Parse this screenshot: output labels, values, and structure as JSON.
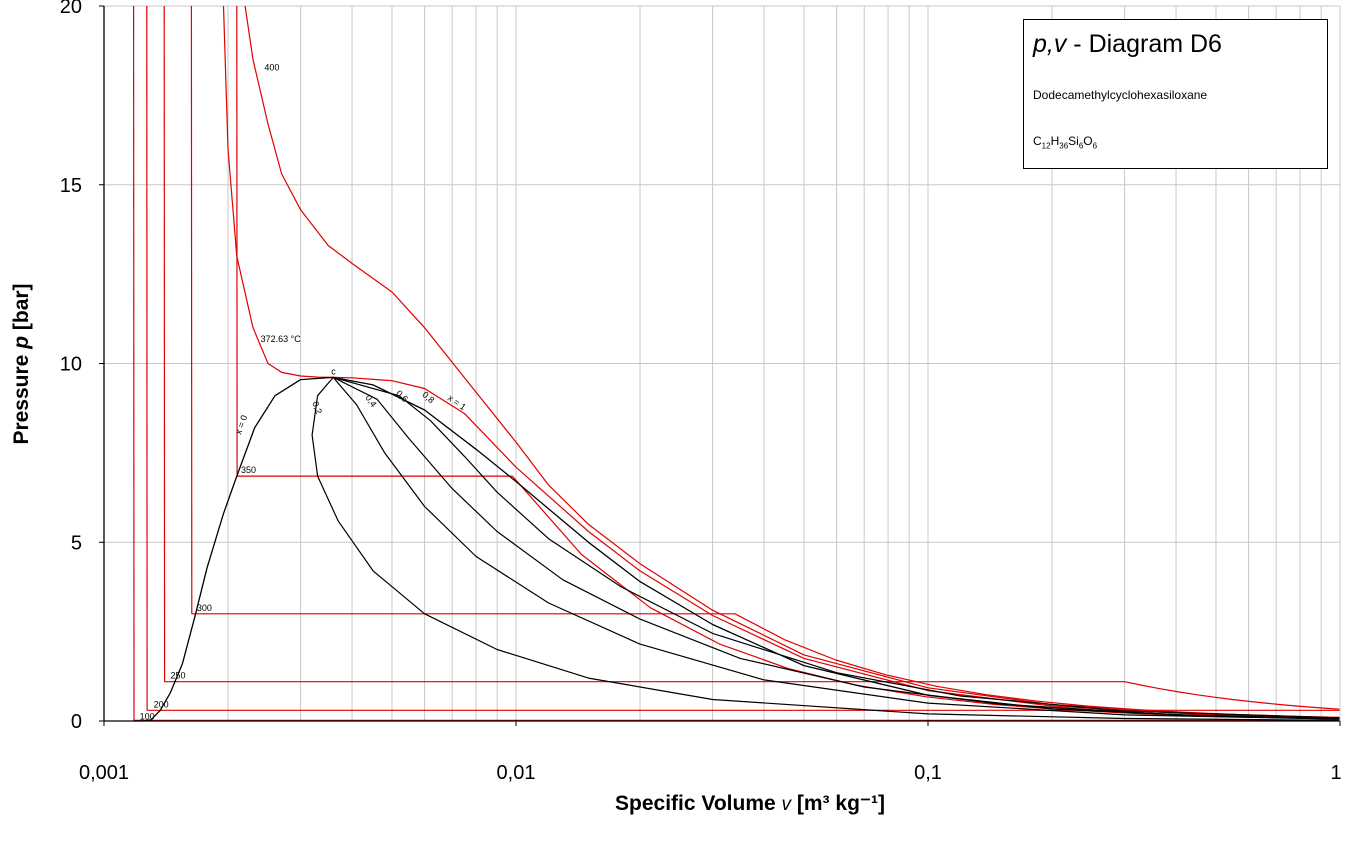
{
  "chart_data": {
    "type": "line",
    "title": "",
    "xlabel": {
      "text": "Specific Volume",
      "symbol": "v",
      "unit": "[m³ kg⁻¹]"
    },
    "ylabel": {
      "text": "Pressure",
      "symbol": "p",
      "unit": "[bar]"
    },
    "x_scale": "log",
    "xlim": [
      0.001,
      1
    ],
    "ylim": [
      0,
      20
    ],
    "x_ticks": [
      "0,001",
      "0,01",
      "0,1",
      "1"
    ],
    "y_ticks": [
      "0",
      "5",
      "10",
      "15",
      "20"
    ],
    "grid": true,
    "legend": {
      "title_prefix": "p,v",
      "title_rest": " - Diagram D6",
      "substance": "Dodecamethylcyclohexasiloxane",
      "formula_parts": [
        {
          "t": "C",
          "sub": false
        },
        {
          "t": "12",
          "sub": true
        },
        {
          "t": "H",
          "sub": false
        },
        {
          "t": "36",
          "sub": true
        },
        {
          "t": "Si",
          "sub": false
        },
        {
          "t": "6",
          "sub": true
        },
        {
          "t": "O",
          "sub": false
        },
        {
          "t": "6",
          "sub": true
        }
      ],
      "placement": "top-right"
    },
    "critical_point": {
      "label": "c",
      "v": 0.0036,
      "p": 9.61
    },
    "saturated_liquid": {
      "label": "x = 0",
      "v": [
        0.00118,
        0.00125,
        0.0013,
        0.00137,
        0.00145,
        0.00155,
        0.00166,
        0.00178,
        0.00195,
        0.0021,
        0.00232,
        0.0026,
        0.003,
        0.0036
      ],
      "p": [
        0.0,
        0.005,
        0.03,
        0.3,
        0.8,
        1.6,
        2.9,
        4.3,
        5.8,
        6.85,
        8.2,
        9.1,
        9.55,
        9.61
      ]
    },
    "saturated_vapor": {
      "label": "x = 1",
      "v": [
        0.0036,
        0.0045,
        0.006,
        0.008,
        0.01,
        0.015,
        0.02,
        0.03,
        0.05,
        0.1,
        0.2,
        0.5,
        1.0
      ],
      "p": [
        9.61,
        9.4,
        8.7,
        7.6,
        6.7,
        5.0,
        3.9,
        2.7,
        1.55,
        0.72,
        0.34,
        0.13,
        0.06
      ]
    },
    "quality_lines": [
      {
        "label": "0,2",
        "v": [
          0.0036,
          0.0033,
          0.0032,
          0.0033,
          0.0037,
          0.0045,
          0.006,
          0.009,
          0.015,
          0.03,
          0.1,
          0.3,
          1.0
        ],
        "p": [
          9.61,
          9.1,
          8.0,
          6.85,
          5.6,
          4.2,
          3.0,
          2.0,
          1.2,
          0.6,
          0.2,
          0.07,
          0.02
        ]
      },
      {
        "label": "0,4",
        "v": [
          0.0036,
          0.0041,
          0.0048,
          0.006,
          0.008,
          0.012,
          0.02,
          0.04,
          0.1,
          0.3,
          1.0
        ],
        "p": [
          9.61,
          8.85,
          7.5,
          6.0,
          4.6,
          3.3,
          2.15,
          1.15,
          0.5,
          0.17,
          0.05
        ]
      },
      {
        "label": "0,6",
        "v": [
          0.0036,
          0.0046,
          0.0055,
          0.007,
          0.009,
          0.013,
          0.02,
          0.035,
          0.07,
          0.15,
          0.4,
          1.0
        ],
        "p": [
          9.61,
          9.0,
          7.9,
          6.5,
          5.3,
          3.95,
          2.85,
          1.75,
          0.95,
          0.47,
          0.17,
          0.07
        ]
      },
      {
        "label": "0,8",
        "v": [
          0.0036,
          0.0052,
          0.0062,
          0.0075,
          0.009,
          0.012,
          0.018,
          0.03,
          0.06,
          0.12,
          0.3,
          1.0
        ],
        "p": [
          9.61,
          9.1,
          8.4,
          7.4,
          6.4,
          5.1,
          3.75,
          2.45,
          1.35,
          0.7,
          0.28,
          0.09
        ]
      }
    ],
    "isotherms": [
      {
        "label": "100",
        "T": 100,
        "p_sat": 0.02,
        "liquid_v": 0.00118,
        "vapor_v": 1.0
      },
      {
        "label": "200",
        "T": 200,
        "p_sat": 0.3,
        "liquid_v": 0.00127,
        "vapor_v": 1.0
      },
      {
        "label": "250",
        "T": 250,
        "p_sat": 1.1,
        "liquid_v": 0.0014,
        "vapor_v": 0.3
      },
      {
        "label": "300",
        "T": 300,
        "p_sat": 3.0,
        "liquid_v": 0.00163,
        "vapor_v": 0.034
      },
      {
        "label": "350",
        "T": 350,
        "p_sat": 6.85,
        "liquid_v": 0.0021,
        "vapor_v": 0.0098
      },
      {
        "label": "372.63 °C",
        "T": 372.63,
        "critical": true,
        "v": [
          0.00195,
          0.002,
          0.0021,
          0.0023,
          0.0025,
          0.0027,
          0.003,
          0.0033,
          0.0036,
          0.004,
          0.005,
          0.006,
          0.0075,
          0.01,
          0.015,
          0.02,
          0.03,
          0.05,
          0.1,
          0.2,
          0.5,
          1.0
        ],
        "p": [
          20.0,
          16.0,
          13.0,
          11.0,
          10.0,
          9.75,
          9.65,
          9.62,
          9.61,
          9.6,
          9.52,
          9.3,
          8.6,
          7.1,
          5.3,
          4.2,
          2.95,
          1.75,
          0.85,
          0.42,
          0.16,
          0.08
        ]
      },
      {
        "label": "400",
        "T": 400,
        "v": [
          0.0022,
          0.0023,
          0.0025,
          0.0027,
          0.003,
          0.0035,
          0.004,
          0.005,
          0.006,
          0.0075,
          0.01,
          0.012,
          0.015,
          0.02,
          0.03,
          0.05,
          0.1,
          0.2,
          0.5,
          1.0
        ],
        "p": [
          20.0,
          18.5,
          16.7,
          15.3,
          14.3,
          13.3,
          12.8,
          12.0,
          11.0,
          9.6,
          7.8,
          6.6,
          5.5,
          4.4,
          3.1,
          1.85,
          0.93,
          0.46,
          0.18,
          0.09
        ]
      }
    ],
    "colors": {
      "isotherm": "#e00000",
      "saturation": "#000000",
      "quality": "#000000",
      "grid": "#c8c8c8",
      "axis": "#000000"
    }
  }
}
